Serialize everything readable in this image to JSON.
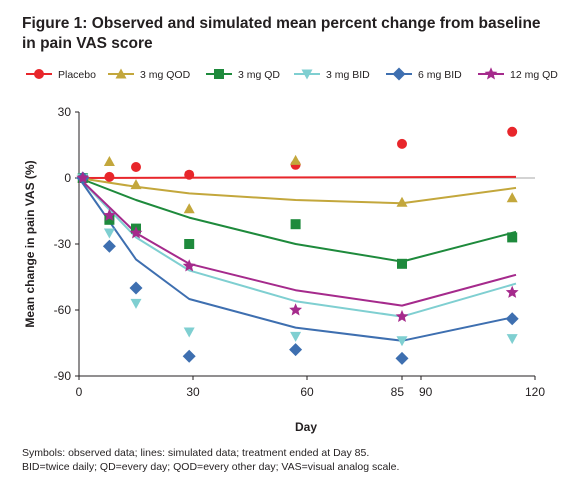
{
  "figure": {
    "title": "Figure 1: Observed and simulated mean percent change from baseline in pain VAS score",
    "footnote_lines": [
      "Symbols: observed data; lines: simulated data; treatment ended at Day 85.",
      "BID=twice daily; QD=every day; QOD=every other day; VAS=visual analog scale."
    ]
  },
  "chart_data": {
    "type": "scatter",
    "xlabel": "Day",
    "ylabel": "Mean change in pain VAS (%)",
    "xlim": [
      0,
      120
    ],
    "ylim": [
      -90,
      30
    ],
    "x_ticks": [
      0,
      30,
      60,
      85,
      90,
      120
    ],
    "y_ticks": [
      -90,
      -60,
      -30,
      0,
      30
    ],
    "legend_position": "top",
    "series": [
      {
        "name": "Placebo",
        "color": "#e8262b",
        "marker": "circle",
        "observed": [
          [
            1,
            0
          ],
          [
            8,
            0.5
          ],
          [
            15,
            5
          ],
          [
            29,
            1.5
          ],
          [
            57,
            6
          ],
          [
            85,
            15.5
          ],
          [
            114,
            21
          ]
        ],
        "simulated": [
          [
            0,
            0
          ],
          [
            115,
            0.5
          ]
        ]
      },
      {
        "name": "3 mg QOD",
        "color": "#c3a73c",
        "marker": "triangle-up",
        "observed": [
          [
            1,
            0
          ],
          [
            8,
            7.5
          ],
          [
            15,
            -3
          ],
          [
            29,
            -14
          ],
          [
            57,
            8
          ],
          [
            85,
            -11
          ],
          [
            114,
            -9
          ]
        ],
        "simulated": [
          [
            0,
            0
          ],
          [
            15,
            -4
          ],
          [
            29,
            -7
          ],
          [
            57,
            -10
          ],
          [
            85,
            -11.5
          ],
          [
            115,
            -4.5
          ]
        ]
      },
      {
        "name": "3 mg QD",
        "color": "#1e8a3c",
        "marker": "square",
        "observed": [
          [
            1,
            0
          ],
          [
            8,
            -19
          ],
          [
            15,
            -23
          ],
          [
            29,
            -30
          ],
          [
            57,
            -21
          ],
          [
            85,
            -39
          ],
          [
            114,
            -27
          ]
        ],
        "simulated": [
          [
            0,
            0
          ],
          [
            15,
            -10
          ],
          [
            29,
            -18
          ],
          [
            57,
            -30
          ],
          [
            85,
            -38
          ],
          [
            115,
            -24.5
          ]
        ]
      },
      {
        "name": "3 mg BID",
        "color": "#7fcfd1",
        "marker": "triangle-down",
        "observed": [
          [
            1,
            0
          ],
          [
            8,
            -25
          ],
          [
            15,
            -57
          ],
          [
            29,
            -70
          ],
          [
            57,
            -72
          ],
          [
            85,
            -74
          ],
          [
            114,
            -73
          ]
        ],
        "simulated": [
          [
            0,
            0
          ],
          [
            15,
            -27
          ],
          [
            29,
            -42
          ],
          [
            57,
            -56
          ],
          [
            85,
            -63
          ],
          [
            115,
            -48
          ]
        ]
      },
      {
        "name": "6 mg BID",
        "color": "#3e6fb0",
        "marker": "diamond",
        "observed": [
          [
            1,
            0
          ],
          [
            8,
            -31
          ],
          [
            15,
            -50
          ],
          [
            29,
            -81
          ],
          [
            57,
            -78
          ],
          [
            85,
            -82
          ],
          [
            114,
            -64
          ]
        ],
        "simulated": [
          [
            0,
            0
          ],
          [
            15,
            -37
          ],
          [
            29,
            -55
          ],
          [
            57,
            -68
          ],
          [
            85,
            -74
          ],
          [
            115,
            -63
          ]
        ]
      },
      {
        "name": "12 mg QD",
        "color": "#a52a8c",
        "marker": "star",
        "observed": [
          [
            1,
            0
          ],
          [
            8,
            -17
          ],
          [
            15,
            -25
          ],
          [
            29,
            -40
          ],
          [
            57,
            -60
          ],
          [
            85,
            -63
          ],
          [
            114,
            -52
          ]
        ],
        "simulated": [
          [
            0,
            0
          ],
          [
            15,
            -25
          ],
          [
            29,
            -39
          ],
          [
            57,
            -51
          ],
          [
            85,
            -58
          ],
          [
            115,
            -44
          ]
        ]
      }
    ]
  }
}
